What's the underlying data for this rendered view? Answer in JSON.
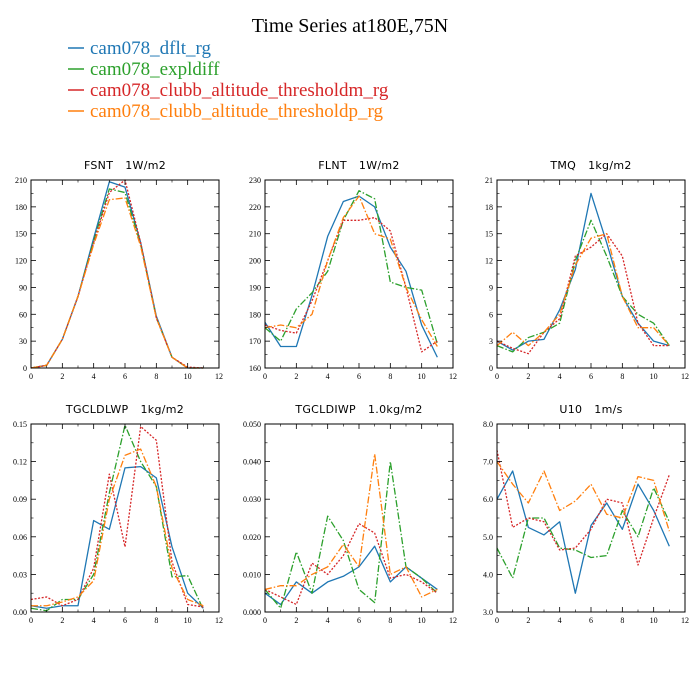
{
  "title": "Time Series at180E,75N",
  "legend": [
    {
      "name": "cam078_dflt_rg",
      "color": "#1f77b4",
      "dash": "solid"
    },
    {
      "name": "cam078_expldiff",
      "color": "#2ca02c",
      "dash": "dashdot"
    },
    {
      "name": "cam078_clubb_altitude_thresholdm_rg",
      "color": "#d62728",
      "dash": "dotted"
    },
    {
      "name": "cam078_clubb_altitude_thresholdp_rg",
      "color": "#ff7f0e",
      "dash": "dashdot"
    }
  ],
  "chart_data": [
    {
      "type": "line",
      "title": "FSNT",
      "units": "1W/m2",
      "x": [
        0,
        1,
        2,
        3,
        4,
        5,
        6,
        7,
        8,
        9,
        10,
        11
      ],
      "xlim": [
        0,
        12
      ],
      "xticks": [
        "0",
        "2",
        "4",
        "6",
        "8",
        "10",
        "12"
      ],
      "ylim": [
        0,
        210
      ],
      "yticks": [
        "0",
        "30",
        "60",
        "90",
        "120",
        "150",
        "180",
        "210"
      ],
      "series": [
        {
          "name": "cam078_dflt_rg",
          "values": [
            0,
            3,
            32,
            80,
            145,
            208,
            202,
            140,
            58,
            12,
            0,
            0
          ]
        },
        {
          "name": "cam078_expldiff",
          "values": [
            0,
            3,
            32,
            80,
            142,
            200,
            196,
            138,
            56,
            12,
            0,
            0
          ]
        },
        {
          "name": "cam078_clubb_altitude_thresholdm_rg",
          "values": [
            0,
            3,
            32,
            80,
            140,
            196,
            210,
            140,
            56,
            12,
            1,
            0
          ]
        },
        {
          "name": "cam078_clubb_altitude_thresholdp_rg",
          "values": [
            0,
            3,
            32,
            80,
            138,
            188,
            190,
            136,
            56,
            12,
            0,
            0
          ]
        }
      ]
    },
    {
      "type": "line",
      "title": "FLNT",
      "units": "1W/m2",
      "x": [
        0,
        1,
        2,
        3,
        4,
        5,
        6,
        7,
        8,
        9,
        10,
        11
      ],
      "xlim": [
        0,
        12
      ],
      "xticks": [
        "0",
        "2",
        "4",
        "6",
        "8",
        "10",
        "12"
      ],
      "ylim": [
        160,
        230
      ],
      "yticks": [
        "160",
        "170",
        "180",
        "190",
        "200",
        "210",
        "220",
        "230"
      ],
      "series": [
        {
          "name": "cam078_dflt_rg",
          "values": [
            177,
            168,
            168,
            187,
            209,
            222,
            224,
            220,
            205,
            196,
            176,
            164
          ]
        },
        {
          "name": "cam078_expldiff",
          "values": [
            175,
            170,
            182,
            188,
            196,
            215,
            226,
            223,
            192,
            190,
            189,
            169
          ]
        },
        {
          "name": "cam078_clubb_altitude_thresholdm_rg",
          "values": [
            176,
            174,
            173,
            185,
            200,
            215,
            215,
            216,
            211,
            190,
            166,
            170
          ]
        },
        {
          "name": "cam078_clubb_altitude_thresholdp_rg",
          "values": [
            175,
            176,
            175,
            180,
            200,
            216,
            224,
            210,
            208,
            190,
            178,
            168
          ]
        }
      ]
    },
    {
      "type": "line",
      "title": "TMQ",
      "units": "1kg/m2",
      "x": [
        0,
        1,
        2,
        3,
        4,
        5,
        6,
        7,
        8,
        9,
        10,
        11
      ],
      "xlim": [
        0,
        12
      ],
      "xticks": [
        "0",
        "2",
        "4",
        "6",
        "8",
        "10",
        "12"
      ],
      "ylim": [
        0,
        21
      ],
      "yticks": [
        "0",
        "3",
        "6",
        "9",
        "12",
        "15",
        "18",
        "21"
      ],
      "series": [
        {
          "name": "cam078_dflt_rg",
          "values": [
            3,
            2,
            3,
            3.2,
            6.5,
            11,
            19.5,
            14,
            8,
            5,
            3,
            2.5
          ]
        },
        {
          "name": "cam078_expldiff",
          "values": [
            2.5,
            1.8,
            3.4,
            4,
            5,
            12,
            16.5,
            12.5,
            8,
            6,
            5,
            2.5
          ]
        },
        {
          "name": "cam078_clubb_altitude_thresholdm_rg",
          "values": [
            3,
            2.2,
            1.6,
            4,
            5.5,
            12.5,
            13.5,
            15,
            12.5,
            5,
            2.5,
            2.5
          ]
        },
        {
          "name": "cam078_clubb_altitude_thresholdp_rg",
          "values": [
            2.5,
            4,
            2.5,
            4,
            6,
            11.5,
            14.5,
            15,
            8,
            4.5,
            4.5,
            2.5
          ]
        }
      ]
    },
    {
      "type": "line",
      "title": "TGCLDLWP",
      "units": "1kg/m2",
      "x": [
        0,
        1,
        2,
        3,
        4,
        5,
        6,
        7,
        8,
        9,
        10,
        11
      ],
      "xlim": [
        0,
        12
      ],
      "xticks": [
        "0",
        "2",
        "4",
        "6",
        "8",
        "10",
        "12"
      ],
      "ylim": [
        0,
        0.15
      ],
      "yticks": [
        "0.00",
        "0.03",
        "0.06",
        "0.09",
        "0.12",
        "0.15"
      ],
      "series": [
        {
          "name": "cam078_dflt_rg",
          "values": [
            0.005,
            0.003,
            0.005,
            0.005,
            0.073,
            0.066,
            0.115,
            0.116,
            0.107,
            0.052,
            0.015,
            0.003
          ]
        },
        {
          "name": "cam078_expldiff",
          "values": [
            0.003,
            0.001,
            0.01,
            0.01,
            0.03,
            0.095,
            0.149,
            0.12,
            0.1,
            0.028,
            0.029,
            0.002
          ]
        },
        {
          "name": "cam078_clubb_altitude_thresholdm_rg",
          "values": [
            0.01,
            0.012,
            0.005,
            0.01,
            0.035,
            0.11,
            0.052,
            0.148,
            0.137,
            0.04,
            0.006,
            0.004
          ]
        },
        {
          "name": "cam078_clubb_altitude_thresholdp_rg",
          "values": [
            0.005,
            0.005,
            0.008,
            0.012,
            0.025,
            0.09,
            0.125,
            0.13,
            0.1,
            0.035,
            0.01,
            0.005
          ]
        }
      ]
    },
    {
      "type": "line",
      "title": "TGCLDIWP",
      "units": "1.0kg/m2",
      "x": [
        0,
        1,
        2,
        3,
        4,
        5,
        6,
        7,
        8,
        9,
        10,
        11
      ],
      "xlim": [
        0,
        12
      ],
      "xticks": [
        "0",
        "2",
        "4",
        "6",
        "8",
        "10",
        "12"
      ],
      "ylim": [
        0,
        0.05
      ],
      "yticks": [
        "0.000",
        "0.010",
        "0.020",
        "0.030",
        "0.040",
        "0.050"
      ],
      "series": [
        {
          "name": "cam078_dflt_rg",
          "values": [
            0.005,
            0.002,
            0.008,
            0.005,
            0.008,
            0.0095,
            0.012,
            0.0175,
            0.008,
            0.012,
            0.009,
            0.006
          ]
        },
        {
          "name": "cam078_expldiff",
          "values": [
            0.006,
            0.001,
            0.016,
            0.005,
            0.0255,
            0.019,
            0.006,
            0.0025,
            0.04,
            0.012,
            0.009,
            0.005
          ]
        },
        {
          "name": "cam078_clubb_altitude_thresholdm_rg",
          "values": [
            0.006,
            0.004,
            0.002,
            0.013,
            0.01,
            0.015,
            0.0235,
            0.021,
            0.009,
            0.01,
            0.008,
            0.005
          ]
        },
        {
          "name": "cam078_clubb_altitude_thresholdp_rg",
          "values": [
            0.006,
            0.007,
            0.007,
            0.01,
            0.012,
            0.018,
            0.012,
            0.042,
            0.01,
            0.012,
            0.004,
            0.006
          ]
        }
      ]
    },
    {
      "type": "line",
      "title": "U10",
      "units": "1m/s",
      "x": [
        0,
        1,
        2,
        3,
        4,
        5,
        6,
        7,
        8,
        9,
        10,
        11
      ],
      "xlim": [
        0,
        12
      ],
      "xticks": [
        "0",
        "2",
        "4",
        "6",
        "8",
        "10",
        "12"
      ],
      "ylim": [
        3.0,
        8.0
      ],
      "yticks": [
        "3.0",
        "4.0",
        "5.0",
        "6.0",
        "7.0",
        "8.0"
      ],
      "series": [
        {
          "name": "cam078_dflt_rg",
          "values": [
            6,
            6.75,
            5.25,
            5.05,
            5.4,
            3.5,
            5.3,
            5.9,
            5.2,
            6.4,
            5.7,
            4.75
          ]
        },
        {
          "name": "cam078_expldiff",
          "values": [
            4.7,
            3.9,
            5.5,
            5.5,
            4.7,
            4.65,
            4.45,
            4.5,
            5.7,
            5,
            6.3,
            5.4
          ]
        },
        {
          "name": "cam078_clubb_altitude_thresholdm_rg",
          "values": [
            7.3,
            5.25,
            5.5,
            5.4,
            4.65,
            4.7,
            5.2,
            6,
            5.9,
            4.25,
            5.5,
            6.65
          ]
        },
        {
          "name": "cam078_clubb_altitude_thresholdp_rg",
          "values": [
            7,
            6.4,
            5.9,
            6.75,
            5.7,
            5.95,
            6.4,
            5.6,
            5.5,
            6.6,
            6.5,
            5.15
          ]
        }
      ]
    }
  ]
}
